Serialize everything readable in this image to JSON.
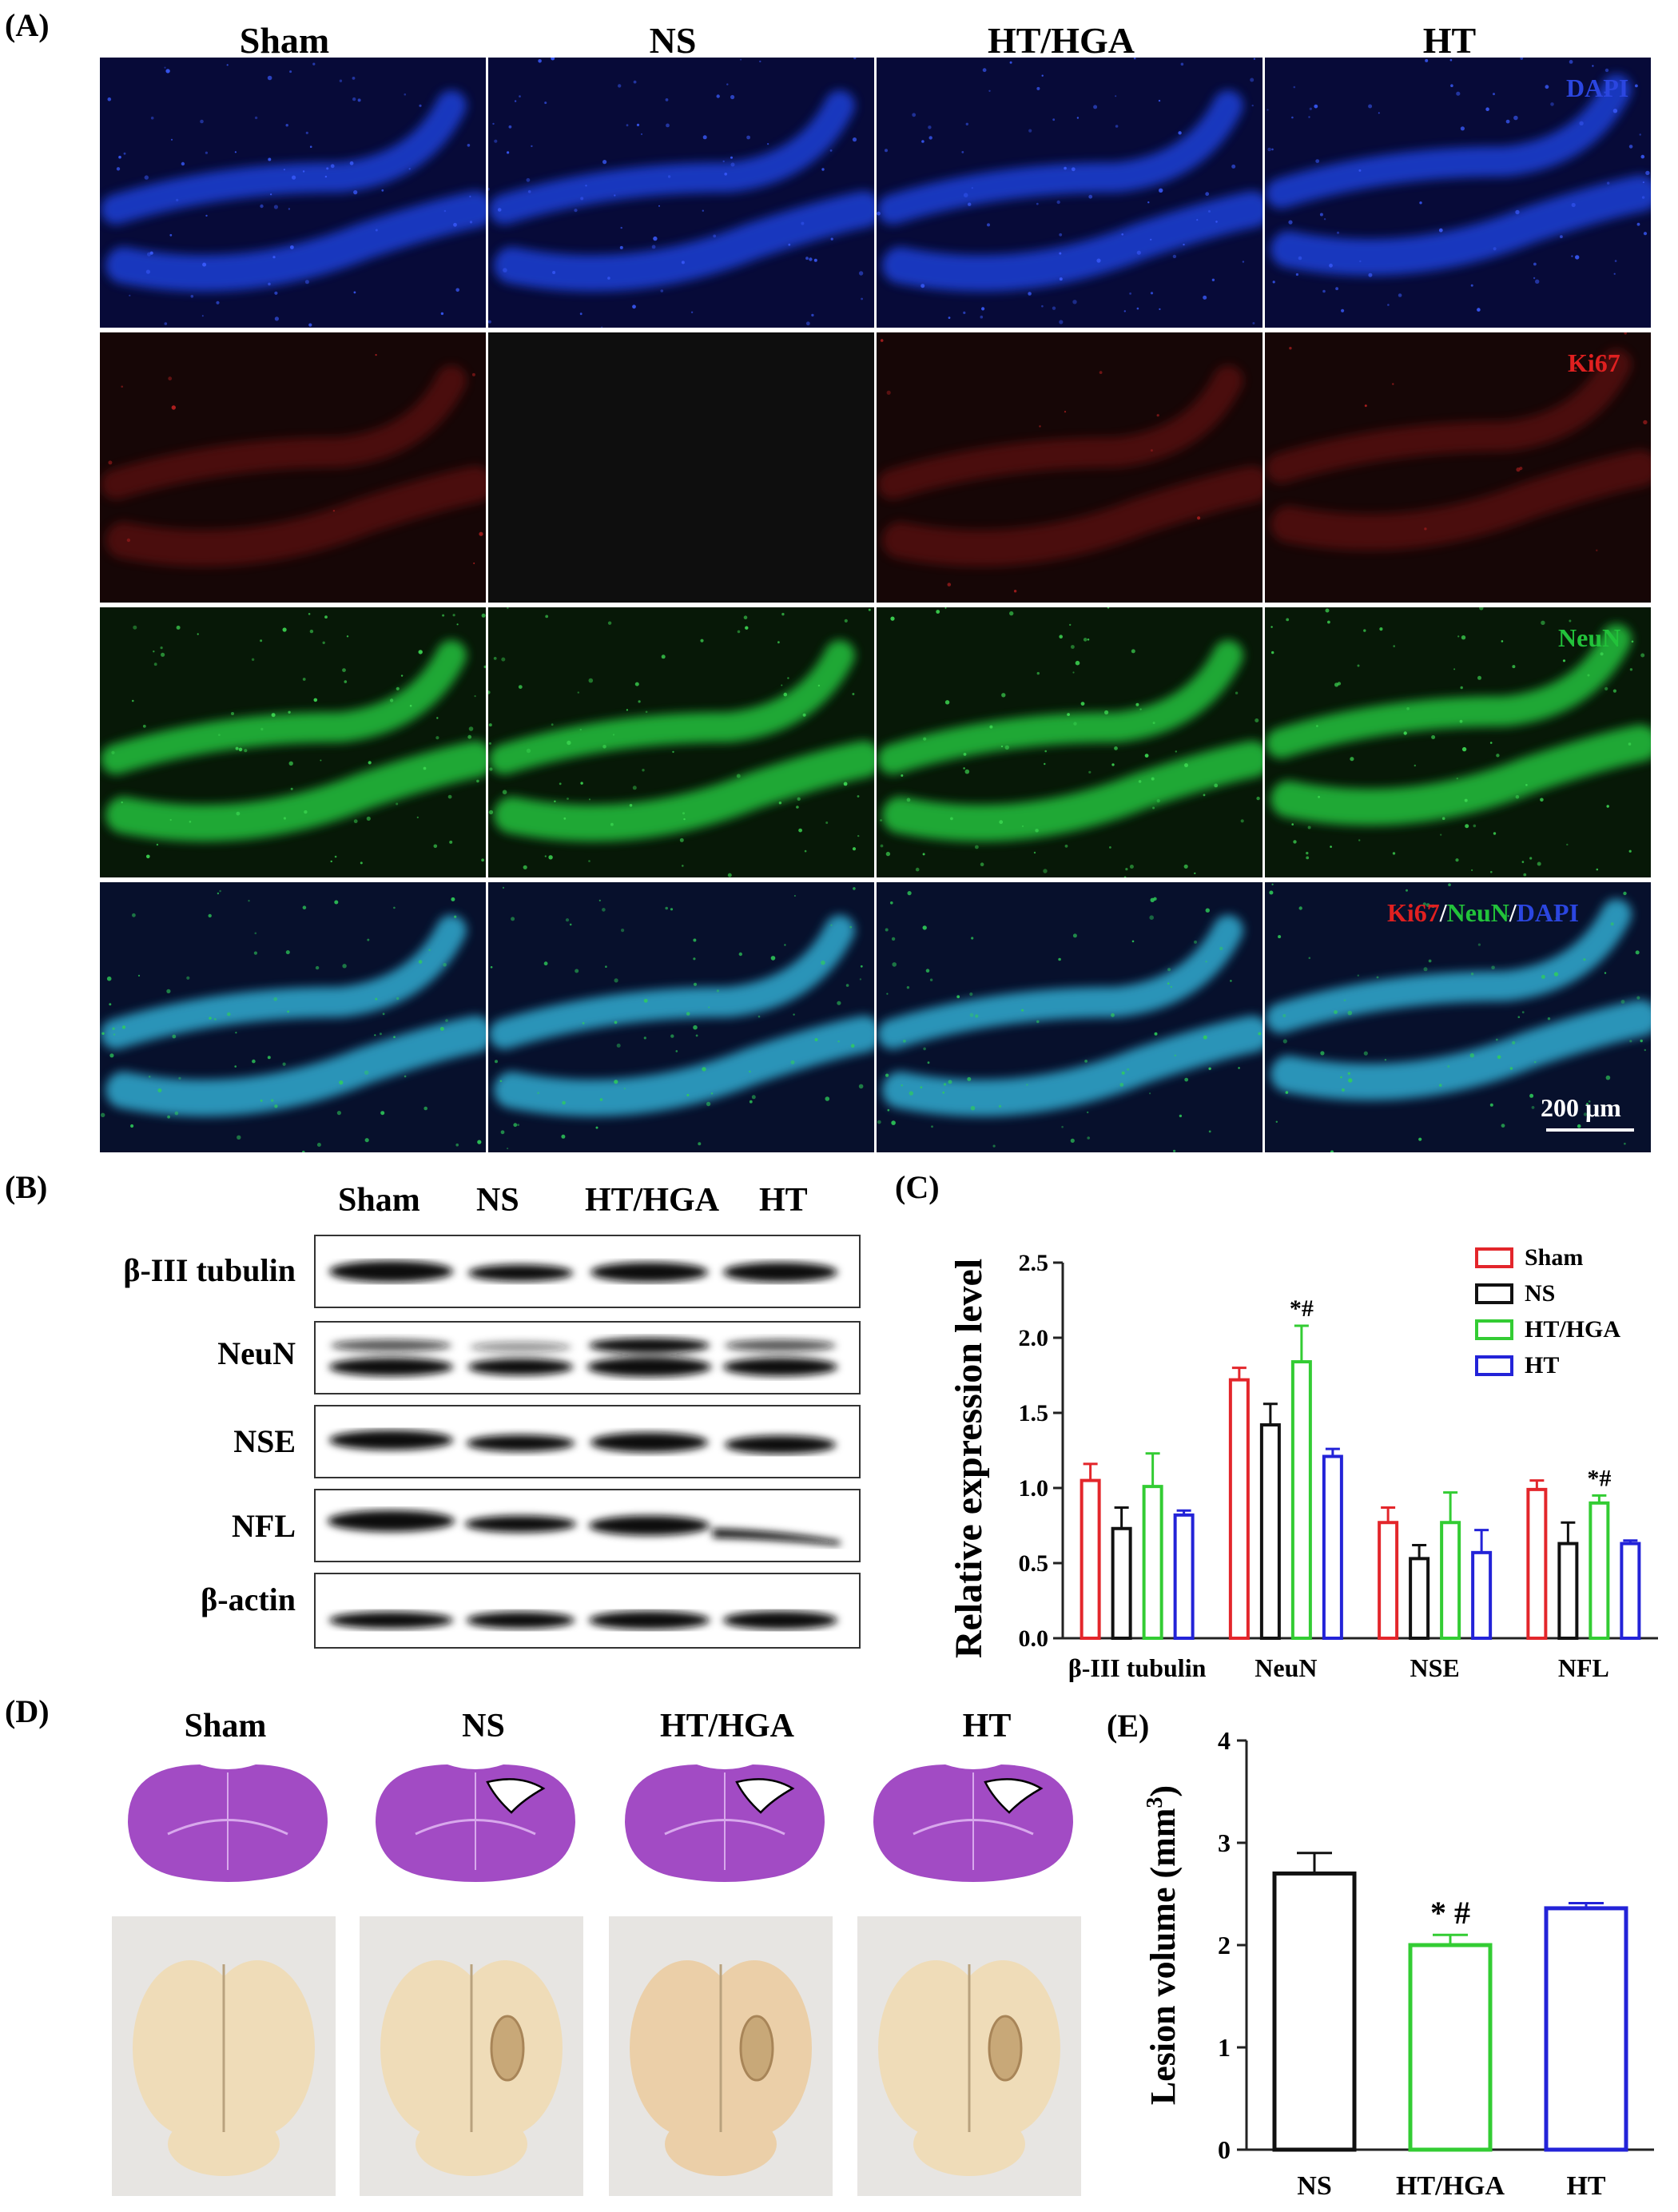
{
  "panel_a": {
    "label": "(A)",
    "columns": [
      "Sham",
      "NS",
      "HT/HGA",
      "HT"
    ],
    "stains": {
      "dapi": "DAPI",
      "ki67": "Ki67",
      "neun": "NeuN",
      "merge_ki67": "Ki67",
      "merge_sep1": "/",
      "merge_neun": "NeuN",
      "merge_sep2": "/",
      "merge_dapi": "DAPI"
    },
    "scale_bar": "200 μm",
    "colors": {
      "dapi": "#1f3fd6",
      "ki67": "#d81f1f",
      "neun": "#22b83a",
      "merge": "#2fa3c8"
    }
  },
  "panel_b": {
    "label": "(B)",
    "lanes": [
      "Sham",
      "NS",
      "HT/HGA",
      "HT"
    ],
    "proteins": [
      "β-III tubulin",
      "NeuN",
      "NSE",
      "NFL",
      "β-actin"
    ]
  },
  "panel_c": {
    "label": "(C)",
    "annotation_neun": "*#",
    "annotation_nfl": "*#"
  },
  "panel_d": {
    "label": "(D)",
    "columns": [
      "Sham",
      "NS",
      "HT/HGA",
      "HT"
    ]
  },
  "panel_e": {
    "label": "(E)",
    "annotation": "* #"
  },
  "chart_data": [
    {
      "type": "bar",
      "panel": "C",
      "ylabel": "Relative expression level",
      "xlabel": "",
      "ylim": [
        0,
        2.5
      ],
      "yticks": [
        "0.0",
        "0.5",
        "1.0",
        "1.5",
        "2.0",
        "2.5"
      ],
      "categories": [
        "β-III tubulin",
        "NeuN",
        "NSE",
        "NFL"
      ],
      "legend_position": "top-right",
      "series": [
        {
          "name": "Sham",
          "color": "#e3262b",
          "values": [
            1.05,
            1.72,
            0.77,
            0.99
          ],
          "errors": [
            0.11,
            0.08,
            0.1,
            0.06
          ]
        },
        {
          "name": "NS",
          "color": "#111111",
          "values": [
            0.73,
            1.42,
            0.53,
            0.63
          ],
          "errors": [
            0.14,
            0.14,
            0.09,
            0.14
          ]
        },
        {
          "name": "HT/HGA",
          "color": "#33cc33",
          "values": [
            1.01,
            1.84,
            0.77,
            0.9
          ],
          "errors": [
            0.22,
            0.24,
            0.2,
            0.05
          ]
        },
        {
          "name": "HT",
          "color": "#2323d8",
          "values": [
            0.82,
            1.21,
            0.57,
            0.63
          ],
          "errors": [
            0.03,
            0.05,
            0.15,
            0.02
          ]
        }
      ]
    },
    {
      "type": "bar",
      "panel": "E",
      "ylabel": "Lesion volume (mm",
      "ylabel_sup": "3",
      "ylabel_end": ")",
      "ylim": [
        0,
        4
      ],
      "yticks": [
        "0",
        "1",
        "2",
        "3",
        "4"
      ],
      "categories": [
        "NS",
        "HT/HGA",
        "HT"
      ],
      "colors": [
        "#111111",
        "#33cc33",
        "#2323d8"
      ],
      "values": [
        2.7,
        2.0,
        2.36
      ],
      "errors": [
        0.2,
        0.1,
        0.05
      ]
    }
  ]
}
